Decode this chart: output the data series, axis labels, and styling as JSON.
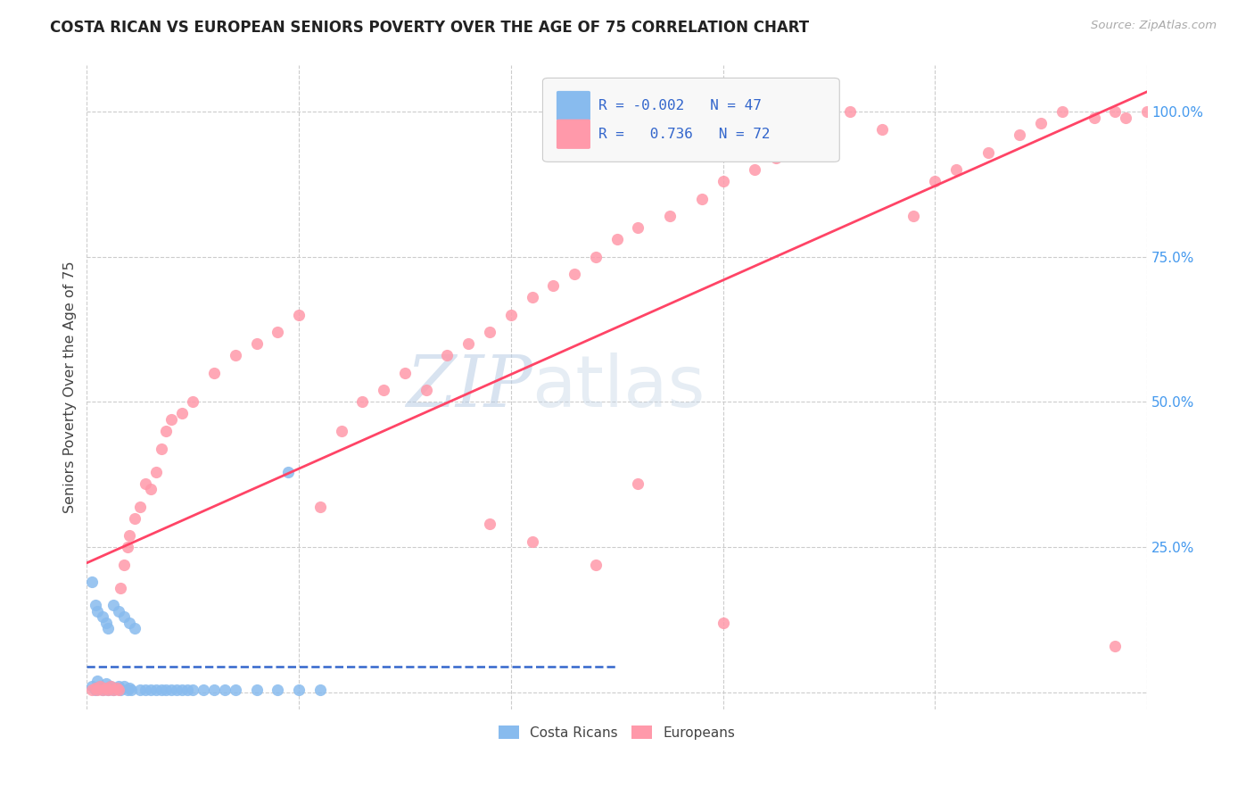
{
  "title": "COSTA RICAN VS EUROPEAN SENIORS POVERTY OVER THE AGE OF 75 CORRELATION CHART",
  "source": "Source: ZipAtlas.com",
  "ylabel": "Seniors Poverty Over the Age of 75",
  "xlim": [
    0.0,
    1.0
  ],
  "ylim": [
    -0.03,
    1.08
  ],
  "costa_rican_color": "#88bbee",
  "european_color": "#ff99aa",
  "trend_costa_color": "#3366cc",
  "trend_euro_color": "#ff4466",
  "watermark_zip": "ZIP",
  "watermark_atlas": "atlas",
  "costa_rican_x": [
    0.005,
    0.008,
    0.01,
    0.012,
    0.015,
    0.018,
    0.02,
    0.022,
    0.025,
    0.028,
    0.03,
    0.032,
    0.035,
    0.038,
    0.04,
    0.042,
    0.005,
    0.008,
    0.01,
    0.015,
    0.018,
    0.02,
    0.025,
    0.03,
    0.035,
    0.04,
    0.045,
    0.05,
    0.055,
    0.06,
    0.065,
    0.07,
    0.075,
    0.08,
    0.085,
    0.09,
    0.095,
    0.1,
    0.11,
    0.12,
    0.13,
    0.14,
    0.16,
    0.18,
    0.2,
    0.22,
    0.19
  ],
  "costa_rican_y": [
    0.01,
    0.005,
    0.02,
    0.01,
    0.005,
    0.015,
    0.005,
    0.01,
    0.005,
    0.008,
    0.01,
    0.005,
    0.01,
    0.005,
    0.008,
    0.005,
    0.19,
    0.15,
    0.14,
    0.13,
    0.12,
    0.11,
    0.15,
    0.14,
    0.13,
    0.12,
    0.11,
    0.005,
    0.005,
    0.005,
    0.005,
    0.005,
    0.005,
    0.005,
    0.005,
    0.005,
    0.005,
    0.005,
    0.005,
    0.005,
    0.005,
    0.005,
    0.005,
    0.005,
    0.005,
    0.005,
    0.38
  ],
  "european_x": [
    0.005,
    0.008,
    0.01,
    0.012,
    0.015,
    0.018,
    0.02,
    0.022,
    0.025,
    0.028,
    0.03,
    0.032,
    0.035,
    0.038,
    0.04,
    0.045,
    0.05,
    0.055,
    0.06,
    0.065,
    0.07,
    0.075,
    0.08,
    0.09,
    0.1,
    0.12,
    0.14,
    0.16,
    0.18,
    0.2,
    0.22,
    0.24,
    0.26,
    0.28,
    0.3,
    0.32,
    0.34,
    0.36,
    0.38,
    0.4,
    0.42,
    0.44,
    0.46,
    0.48,
    0.5,
    0.52,
    0.55,
    0.58,
    0.6,
    0.63,
    0.65,
    0.68,
    0.7,
    0.72,
    0.75,
    0.78,
    0.8,
    0.82,
    0.85,
    0.88,
    0.9,
    0.92,
    0.95,
    0.97,
    0.97,
    0.98,
    1.0,
    0.38,
    0.42,
    0.48,
    0.52,
    0.6
  ],
  "european_y": [
    0.005,
    0.008,
    0.005,
    0.01,
    0.005,
    0.008,
    0.005,
    0.01,
    0.005,
    0.008,
    0.005,
    0.18,
    0.22,
    0.25,
    0.27,
    0.3,
    0.32,
    0.36,
    0.35,
    0.38,
    0.42,
    0.45,
    0.47,
    0.48,
    0.5,
    0.55,
    0.58,
    0.6,
    0.62,
    0.65,
    0.32,
    0.45,
    0.5,
    0.52,
    0.55,
    0.52,
    0.58,
    0.6,
    0.62,
    0.65,
    0.68,
    0.7,
    0.72,
    0.75,
    0.78,
    0.8,
    0.82,
    0.85,
    0.88,
    0.9,
    0.92,
    0.95,
    0.98,
    1.0,
    0.97,
    0.82,
    0.88,
    0.9,
    0.93,
    0.96,
    0.98,
    1.0,
    0.99,
    1.0,
    0.08,
    0.99,
    1.0,
    0.29,
    0.26,
    0.22,
    0.36,
    0.12
  ]
}
